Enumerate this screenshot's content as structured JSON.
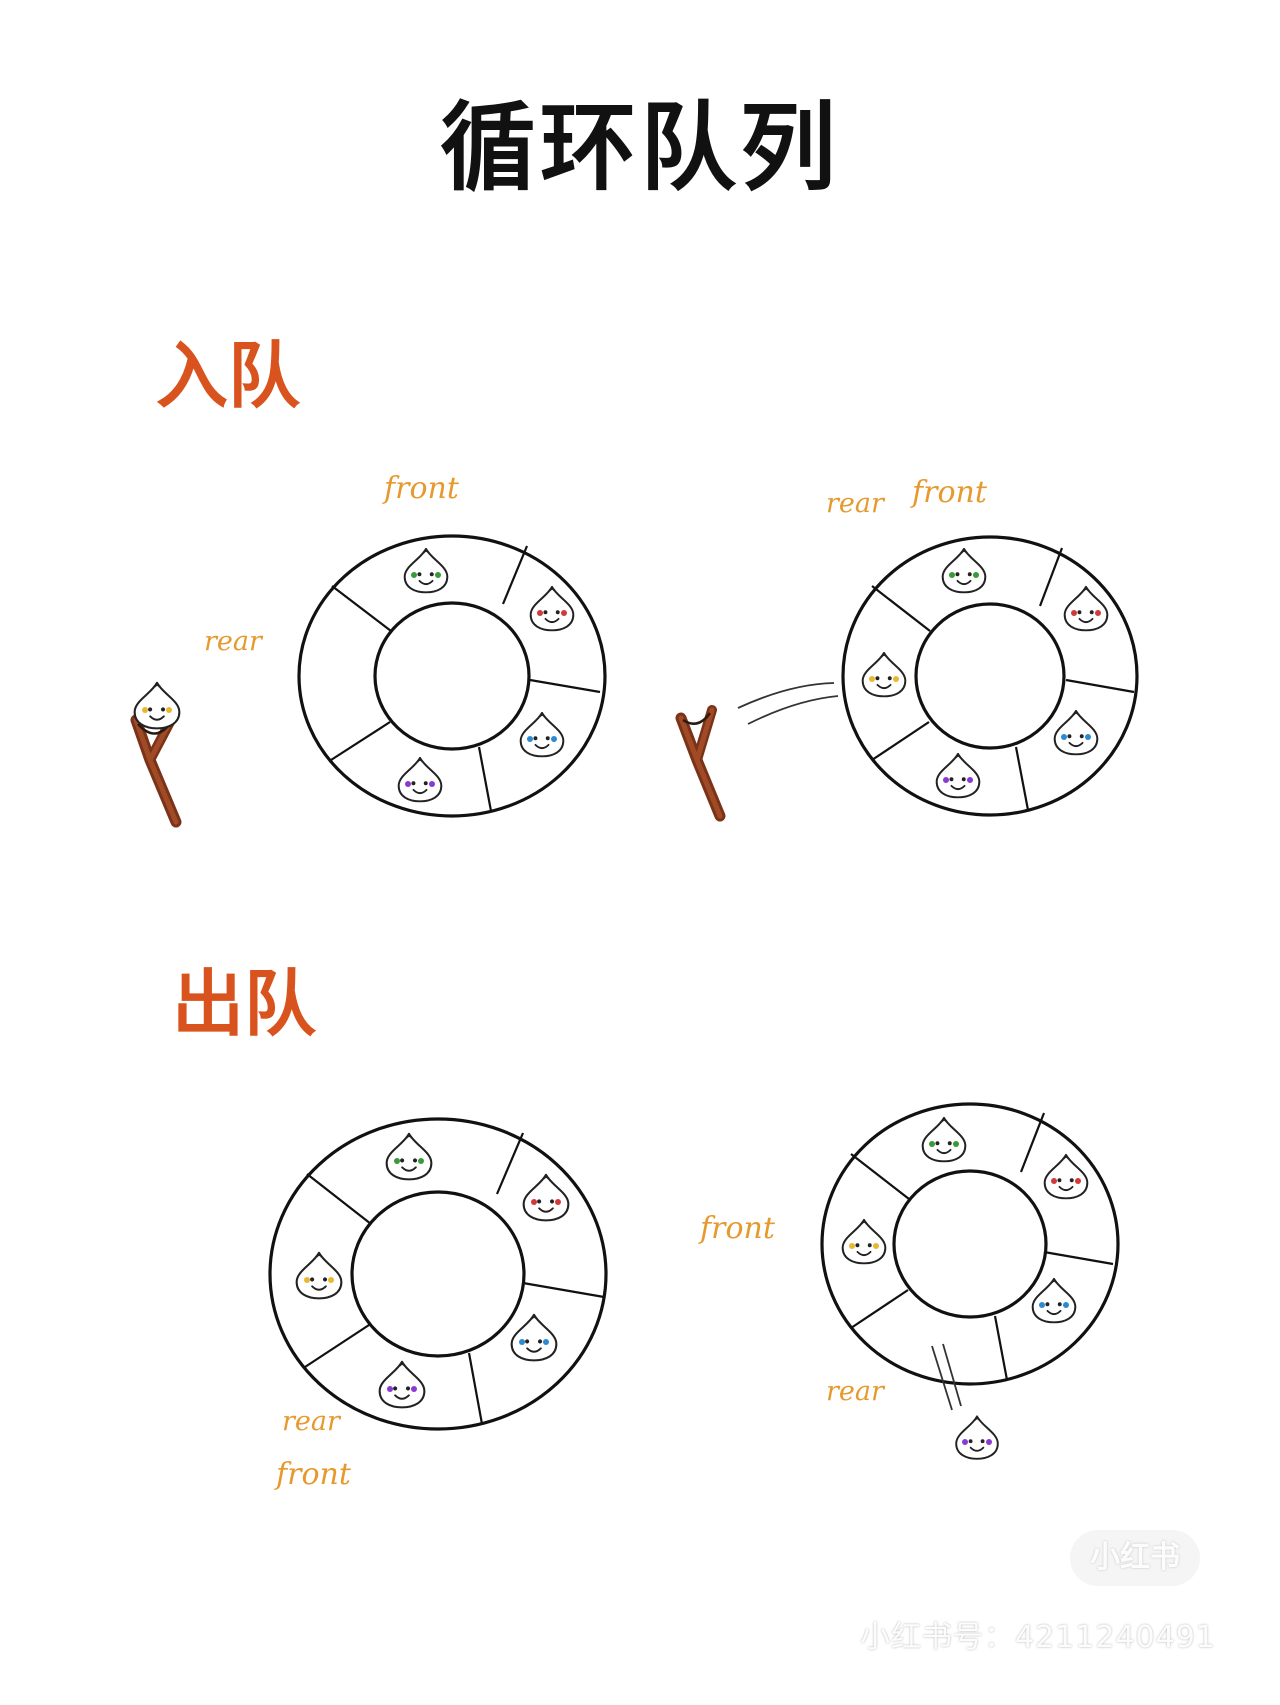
{
  "title": "循环队列",
  "enqueue": {
    "heading": "入队",
    "before": {
      "front_label": "front",
      "rear_label": "rear"
    },
    "after": {
      "rear_label": "rear",
      "front_label": "front"
    }
  },
  "dequeue": {
    "heading": "出队",
    "before": {
      "rear_label": "rear",
      "front_label": "front"
    },
    "after": {
      "front_label": "front",
      "rear_label": "rear"
    }
  },
  "watermark": {
    "logo": "小红书",
    "account": "小红书号：4211240491"
  },
  "colors": {
    "heading": "#d9531e",
    "pointer_label": "#e69a2e",
    "slingshot": "#8b3a1c",
    "dot_green": "#3a9a3a",
    "dot_red": "#d23a3a",
    "dot_blue": "#2a8ad2",
    "dot_purple": "#8a3ad2",
    "dot_yellow": "#e8b830"
  }
}
